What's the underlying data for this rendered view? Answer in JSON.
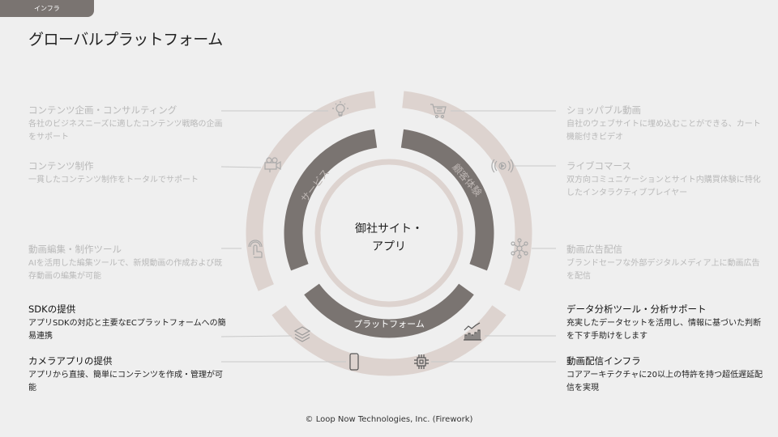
{
  "header": {
    "section_tab": "インフラ",
    "title": "グローバルプラットフォーム"
  },
  "center_label": {
    "line1": "御社サイト・",
    "line2": "アプリ"
  },
  "rings": {
    "left": "サービス",
    "right": "顧客体験",
    "bottom": "プラットフォーム"
  },
  "colors": {
    "outer_ring": "#ddd3cf",
    "inner_ring": "#7a7471",
    "accent_text": "#ffffff"
  },
  "left_items": [
    {
      "title": "コンテンツ企画・コンサルティング",
      "desc": "各社のビジネスニーズに適したコンテンツ戦略の企画をサポート",
      "icon": "lightbulb-icon"
    },
    {
      "title": "コンテンツ制作",
      "desc": "一貫したコンテンツ制作をトータルでサポート",
      "icon": "video-camera-icon"
    },
    {
      "title": "動画編集・制作ツール",
      "desc": "AIを活用した編集ツールで、新規動画の作成および既存動画の編集が可能",
      "icon": "touch-icon"
    },
    {
      "title": "SDKの提供",
      "desc": "アプリSDKの対応と主要なECプラットフォームへの簡易連携",
      "icon": "layers-icon"
    },
    {
      "title": "カメラアプリの提供",
      "desc": "アプリから直接、簡単にコンテンツを作成・管理が可能",
      "icon": "smartphone-icon"
    }
  ],
  "right_items": [
    {
      "title": "ショッパブル動画",
      "desc": "自社のウェブサイトに埋め込むことができる、カート機能付きビデオ",
      "icon": "cart-icon"
    },
    {
      "title": "ライブコマース",
      "desc": "双方向コミュニケーションとサイト内購買体験に特化したインタラクティブプレイヤー",
      "icon": "live-broadcast-icon"
    },
    {
      "title": "動画広告配信",
      "desc": "ブランドセーフな外部デジタルメディア上に動画広告を配信",
      "icon": "network-icon"
    },
    {
      "title": "データ分析ツール・分析サポート",
      "desc": "充実したデータセットを活用し、情報に基づいた判断を下す手助けをします",
      "icon": "bar-chart-icon"
    },
    {
      "title": "動画配信インフラ",
      "desc": "コアアーキテクチャに20以上の特許を持つ超低遅延配信を実現",
      "icon": "chip-icon"
    }
  ],
  "footer": "© Loop Now Technologies, Inc. (Firework)"
}
